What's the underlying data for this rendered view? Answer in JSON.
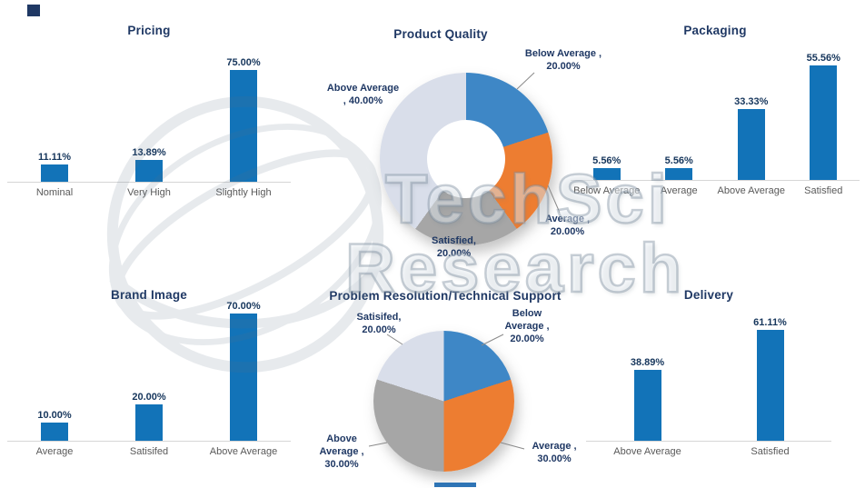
{
  "decorations": {
    "watermark_line1": "TechSci",
    "watermark_line2": "Research"
  },
  "colors": {
    "bar": "#1273B8",
    "title": "#1F3864",
    "value_label": "#16365C",
    "category_label": "#595959",
    "pie_blue": "#3E87C6",
    "pie_orange": "#ED7D31",
    "pie_gray": "#A6A6A6",
    "pie_light": "#D9DEEA"
  },
  "chart_data": [
    {
      "type": "bar",
      "title": "Pricing",
      "categories": [
        "Nominal",
        "Very High",
        "Slightly High"
      ],
      "values": [
        11.11,
        13.89,
        75.0
      ],
      "value_labels": [
        "11.11%",
        "13.89%",
        "75.00%"
      ],
      "ylim": [
        0,
        80
      ]
    },
    {
      "type": "donut",
      "title": "Product Quality",
      "slices": [
        {
          "label": "Below Average",
          "value": 20.0,
          "color_key": "pie_blue",
          "callout_lines": [
            "Below Average ,",
            "20.00%"
          ]
        },
        {
          "label": "Average",
          "value": 20.0,
          "color_key": "pie_orange",
          "callout_lines": [
            "Average ,",
            "20.00%"
          ]
        },
        {
          "label": "Satisfied",
          "value": 20.0,
          "color_key": "pie_gray",
          "callout_lines": [
            "Satisfied,",
            "20.00%"
          ]
        },
        {
          "label": "Above Average",
          "value": 40.0,
          "color_key": "pie_light",
          "callout_lines": [
            "Above Average",
            ", 40.00%"
          ]
        }
      ]
    },
    {
      "type": "bar",
      "title": "Packaging",
      "categories": [
        "Below Average",
        "Average",
        "Above Average",
        "Satisfied"
      ],
      "values": [
        5.56,
        5.56,
        33.33,
        55.56
      ],
      "value_labels": [
        "5.56%",
        "5.56%",
        "33.33%",
        "55.56%"
      ],
      "ylim": [
        0,
        60
      ]
    },
    {
      "type": "bar",
      "title": "Brand Image",
      "categories": [
        "Average",
        "Satisifed",
        "Above Average"
      ],
      "values": [
        10.0,
        20.0,
        70.0
      ],
      "value_labels": [
        "10.00%",
        "20.00%",
        "70.00%"
      ],
      "ylim": [
        0,
        80
      ]
    },
    {
      "type": "pie",
      "title": "Problem Resolution/Technical Support",
      "slices": [
        {
          "label": "Below Average",
          "value": 20.0,
          "color_key": "pie_blue",
          "callout_lines": [
            "Below",
            "Average ,",
            "20.00%"
          ]
        },
        {
          "label": "Average",
          "value": 30.0,
          "color_key": "pie_orange",
          "callout_lines": [
            "Average ,",
            "30.00%"
          ]
        },
        {
          "label": "Above Average",
          "value": 30.0,
          "color_key": "pie_gray",
          "callout_lines": [
            "Above",
            "Average ,",
            "30.00%"
          ]
        },
        {
          "label": "Satisifed",
          "value": 20.0,
          "color_key": "pie_light",
          "callout_lines": [
            "Satisifed,",
            "20.00%"
          ]
        }
      ]
    },
    {
      "type": "bar",
      "title": "Delivery",
      "categories": [
        "Above Average",
        "Satisfied"
      ],
      "values": [
        38.89,
        61.11
      ],
      "value_labels": [
        "38.89%",
        "61.11%"
      ],
      "ylim": [
        0,
        70
      ]
    }
  ]
}
